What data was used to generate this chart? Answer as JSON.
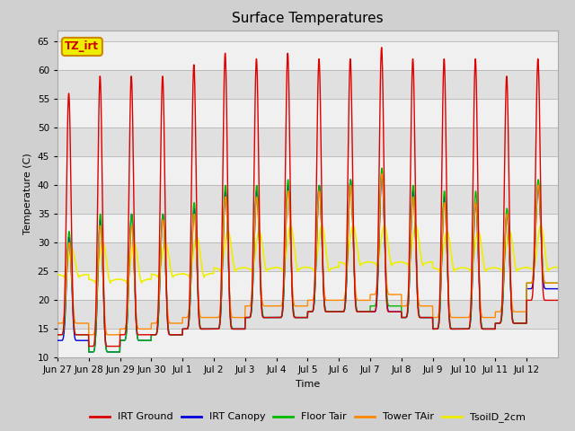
{
  "title": "Surface Temperatures",
  "ylabel": "Temperature (C)",
  "xlabel": "Time",
  "ylim": [
    10,
    67
  ],
  "yticks": [
    10,
    15,
    20,
    25,
    30,
    35,
    40,
    45,
    50,
    55,
    60,
    65
  ],
  "fig_facecolor": "#d0d0d0",
  "plot_bg_color": "#e8e8e8",
  "series_colors": {
    "IRT Ground": "#dd0000",
    "IRT Canopy": "#0000dd",
    "Floor Tair": "#00bb00",
    "Tower TAir": "#ff8800",
    "TsoilD_2cm": "#eeee00"
  },
  "legend_labels": [
    "IRT Ground",
    "IRT Canopy",
    "Floor Tair",
    "Tower TAir",
    "TsoilD_2cm"
  ],
  "annotation_text": "TZ_irt",
  "annotation_bg": "#eeee00",
  "annotation_border": "#cc8800",
  "xtick_labels": [
    "Jun 27",
    "Jun 28",
    "Jun 29",
    "Jun 30",
    "Jul 1",
    "Jul 2",
    "Jul 3",
    "Jul 4",
    "Jul 5",
    "Jul 6",
    "Jul 7",
    "Jul 8",
    "Jul 9",
    "Jul 10",
    "Jul 11",
    "Jul 12"
  ],
  "n_days": 16,
  "pts_per_day": 144,
  "day_peaks_irt_ground": [
    56,
    59,
    59,
    59,
    61,
    63,
    62,
    63,
    62,
    62,
    64,
    62,
    62,
    62,
    59,
    62
  ],
  "day_mins_irt_ground": [
    14,
    12,
    14,
    14,
    15,
    15,
    17,
    17,
    18,
    18,
    18,
    17,
    15,
    15,
    16,
    20
  ],
  "day_peaks_canopy": [
    31,
    34,
    35,
    35,
    36,
    39,
    39,
    40,
    40,
    41,
    42,
    39,
    38,
    37,
    35,
    40
  ],
  "day_mins_canopy": [
    13,
    11,
    13,
    14,
    15,
    15,
    17,
    17,
    18,
    18,
    18,
    17,
    15,
    15,
    16,
    22
  ],
  "day_peaks_floor": [
    32,
    35,
    35,
    35,
    37,
    40,
    40,
    41,
    40,
    41,
    43,
    40,
    39,
    39,
    36,
    41
  ],
  "day_mins_floor": [
    14,
    11,
    13,
    14,
    15,
    15,
    17,
    17,
    18,
    18,
    19,
    17,
    15,
    15,
    16,
    23
  ],
  "day_peaks_tower": [
    30,
    33,
    33,
    34,
    35,
    38,
    38,
    39,
    39,
    40,
    42,
    38,
    37,
    37,
    35,
    40
  ],
  "day_mins_tower": [
    16,
    14,
    15,
    16,
    17,
    17,
    19,
    19,
    20,
    20,
    21,
    19,
    17,
    17,
    18,
    23
  ],
  "day_peaks_soil": [
    29,
    30,
    30,
    30,
    31,
    32,
    32,
    33,
    33,
    33,
    33,
    33,
    32,
    32,
    32,
    33
  ],
  "day_mins_soil": [
    24,
    23,
    23,
    24,
    24,
    25,
    25,
    25,
    25,
    26,
    26,
    26,
    25,
    25,
    25,
    25
  ],
  "stripe_colors": [
    "#f0f0f0",
    "#e0e0e0"
  ]
}
